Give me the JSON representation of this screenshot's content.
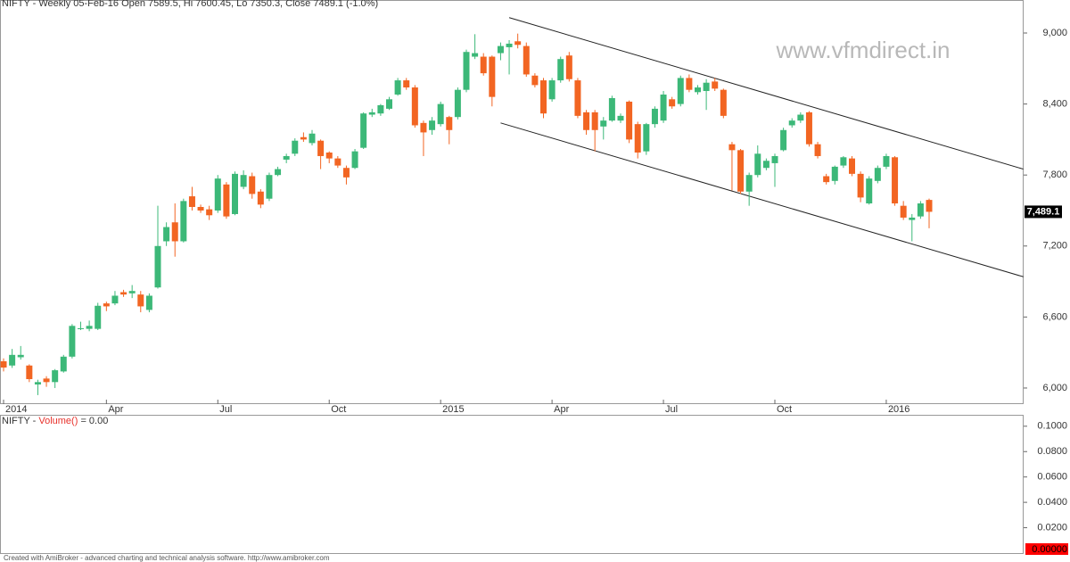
{
  "chart_data": [
    {
      "type": "candlestick",
      "title": "NIFTY - Weekly 05-Feb-16 Open 7589.5, Hi 7600.45, Lo 7350.3, Close 7489.1 (-1.0%)",
      "watermark": "www.vfmdirect.in",
      "categories": [
        "2014",
        null,
        null,
        null,
        null,
        null,
        null,
        null,
        null,
        null,
        null,
        null,
        "Apr",
        null,
        null,
        null,
        null,
        null,
        null,
        null,
        null,
        null,
        null,
        null,
        null,
        "Jul",
        null,
        null,
        null,
        null,
        null,
        null,
        null,
        null,
        null,
        null,
        null,
        null,
        "Oct",
        null,
        null,
        null,
        null,
        null,
        null,
        null,
        null,
        null,
        null,
        null,
        null,
        "2015",
        null,
        null,
        null,
        null,
        null,
        null,
        null,
        null,
        null,
        null,
        null,
        null,
        "Apr",
        null,
        null,
        null,
        null,
        null,
        null,
        null,
        null,
        null,
        null,
        null,
        null,
        "Jul",
        null,
        null,
        null,
        null,
        null,
        null,
        null,
        null,
        null,
        null,
        null,
        null,
        "Oct",
        null,
        null,
        null,
        null,
        null,
        null,
        null,
        null,
        null,
        null,
        null,
        null,
        "2016",
        null,
        null,
        null,
        null,
        null
      ],
      "open": [
        6226,
        6190,
        6260,
        6190,
        6030,
        6080,
        6050,
        6140,
        6265,
        6500,
        6500,
        6500,
        6715,
        6715,
        6810,
        6800,
        6790,
        6660,
        6850,
        7240,
        7400,
        7240,
        7620,
        7530,
        7510,
        7500,
        7720,
        7470,
        7700,
        7790,
        7660,
        7600,
        7800,
        7930,
        7980,
        8120,
        8070,
        8090,
        7990,
        7940,
        7860,
        7860,
        8030,
        8310,
        8320,
        8360,
        8480,
        8600,
        8540,
        8240,
        8180,
        8230,
        8290,
        8290,
        8520,
        8800,
        8800,
        8800,
        8830,
        8880,
        8930,
        8890,
        8640,
        8600,
        8440,
        8600,
        8810,
        8600,
        8330,
        8330,
        8210,
        8260,
        8260,
        8420,
        8230,
        8000,
        8230,
        8260,
        8440,
        8400,
        8620,
        8500,
        8510,
        8590,
        8520,
        8060,
        8010,
        7660,
        7800,
        7860,
        7900,
        8010,
        8220,
        8260,
        8330,
        8060,
        7790,
        7750,
        7880,
        7940,
        7810,
        7560,
        7750,
        7870,
        7950,
        7540,
        7420,
        7450,
        7589.5
      ],
      "high": [
        6250,
        6330,
        6355,
        6200,
        6070,
        6100,
        6160,
        6280,
        6540,
        6560,
        6570,
        6720,
        6730,
        6820,
        6830,
        6870,
        6820,
        6800,
        7540,
        7400,
        7560,
        7600,
        7700,
        7550,
        7540,
        7800,
        7740,
        7830,
        7840,
        7820,
        7680,
        7820,
        7870,
        7980,
        8110,
        8160,
        8180,
        8100,
        8000,
        7960,
        7880,
        8020,
        8330,
        8360,
        8400,
        8460,
        8620,
        8620,
        8560,
        8260,
        8290,
        8420,
        8300,
        8540,
        8860,
        8990,
        8830,
        8810,
        8920,
        8940,
        8995,
        8920,
        8660,
        8620,
        8620,
        8800,
        8840,
        8620,
        8350,
        8350,
        8290,
        8470,
        8320,
        8430,
        8250,
        8240,
        8380,
        8510,
        8460,
        8640,
        8650,
        8560,
        8610,
        8620,
        8530,
        8080,
        8020,
        7820,
        8050,
        7940,
        7980,
        8200,
        8280,
        8330,
        8340,
        8080,
        7810,
        7880,
        7960,
        7960,
        7830,
        7790,
        7880,
        7980,
        7960,
        7580,
        7470,
        7580,
        7600.45
      ],
      "low": [
        6140,
        6170,
        6240,
        6050,
        5940,
        6010,
        6000,
        6130,
        6250,
        6490,
        6480,
        6490,
        6650,
        6700,
        6770,
        6760,
        6640,
        6640,
        6840,
        7200,
        7110,
        7230,
        7500,
        7480,
        7420,
        7480,
        7430,
        7460,
        7680,
        7600,
        7520,
        7580,
        7790,
        7900,
        7960,
        8080,
        8050,
        7850,
        7900,
        7860,
        7720,
        7850,
        8020,
        8290,
        8300,
        8350,
        8470,
        8520,
        8200,
        7960,
        8140,
        8210,
        8060,
        8270,
        8500,
        8780,
        8640,
        8380,
        8770,
        8650,
        8870,
        8630,
        8540,
        8280,
        8420,
        8580,
        8590,
        8280,
        8140,
        8000,
        8100,
        8250,
        8240,
        8070,
        7940,
        7970,
        8200,
        8240,
        8360,
        8380,
        8500,
        8480,
        8350,
        8510,
        8280,
        7670,
        7640,
        7540,
        7780,
        7840,
        7700,
        8000,
        8200,
        8240,
        8040,
        7940,
        7720,
        7720,
        7860,
        7790,
        7570,
        7550,
        7730,
        7850,
        7540,
        7420,
        7240,
        7430,
        7350.3
      ],
      "close": [
        6173,
        6280,
        6280,
        6075,
        6050,
        6050,
        6150,
        6265,
        6525,
        6505,
        6525,
        6695,
        6690,
        6780,
        6790,
        6820,
        6690,
        6780,
        7200,
        7360,
        7240,
        7580,
        7530,
        7500,
        7460,
        7770,
        7450,
        7810,
        7800,
        7640,
        7550,
        7800,
        7850,
        7960,
        8090,
        8100,
        8150,
        7960,
        7940,
        7880,
        7780,
        8000,
        8320,
        8330,
        8390,
        8440,
        8600,
        8540,
        8220,
        8160,
        8260,
        8400,
        8180,
        8520,
        8840,
        8830,
        8660,
        8460,
        8890,
        8910,
        8900,
        8650,
        8560,
        8320,
        8600,
        8780,
        8610,
        8300,
        8180,
        8180,
        8260,
        8450,
        8300,
        8100,
        7990,
        8230,
        8360,
        8480,
        8380,
        8620,
        8520,
        8540,
        8580,
        8530,
        8300,
        8010,
        7660,
        7800,
        7980,
        7920,
        7960,
        8180,
        8260,
        8310,
        8060,
        7960,
        7740,
        7870,
        7950,
        7810,
        7610,
        7770,
        7860,
        7960,
        7560,
        7440,
        7440,
        7560,
        7489.1
      ],
      "last_close_label": "7,489.1",
      "up_color": "#3cb878",
      "down_color": "#f26522",
      "ylim": [
        5864,
        9279
      ],
      "yticks": [
        {
          "value": 6000,
          "label": "6,000"
        },
        {
          "value": 6600,
          "label": "6,600"
        },
        {
          "value": 7200,
          "label": "7,200"
        },
        {
          "value": 7800,
          "label": "7,800"
        },
        {
          "value": 8400,
          "label": "8,400"
        },
        {
          "value": 9000,
          "label": "9,000"
        }
      ],
      "channel": [
        {
          "x": [
            59,
            119
          ],
          "y": [
            9130,
            7850
          ]
        },
        {
          "x": [
            58,
            119
          ],
          "y": [
            8240,
            6940
          ]
        }
      ]
    },
    {
      "type": "volume",
      "title_parts": [
        {
          "text": "NIFTY - ",
          "color": "#333333"
        },
        {
          "text": "Volume()",
          "color": "#e8322c"
        },
        {
          "text": " = 0.00",
          "color": "#333333"
        }
      ],
      "ylim": [
        0,
        0.109
      ],
      "yticks": [
        {
          "value": 0.02,
          "label": "0.0200"
        },
        {
          "value": 0.04,
          "label": "0.0400"
        },
        {
          "value": 0.06,
          "label": "0.0600"
        },
        {
          "value": 0.08,
          "label": "0.0800"
        },
        {
          "value": 0.1,
          "label": "0.1000"
        }
      ],
      "value_label": {
        "value": 0,
        "label": "0.00000"
      },
      "value_label_color": "#ff0000"
    }
  ],
  "footer": "Created with AmiBroker - advanced charting and technical analysis software. http://www.amibroker.com"
}
